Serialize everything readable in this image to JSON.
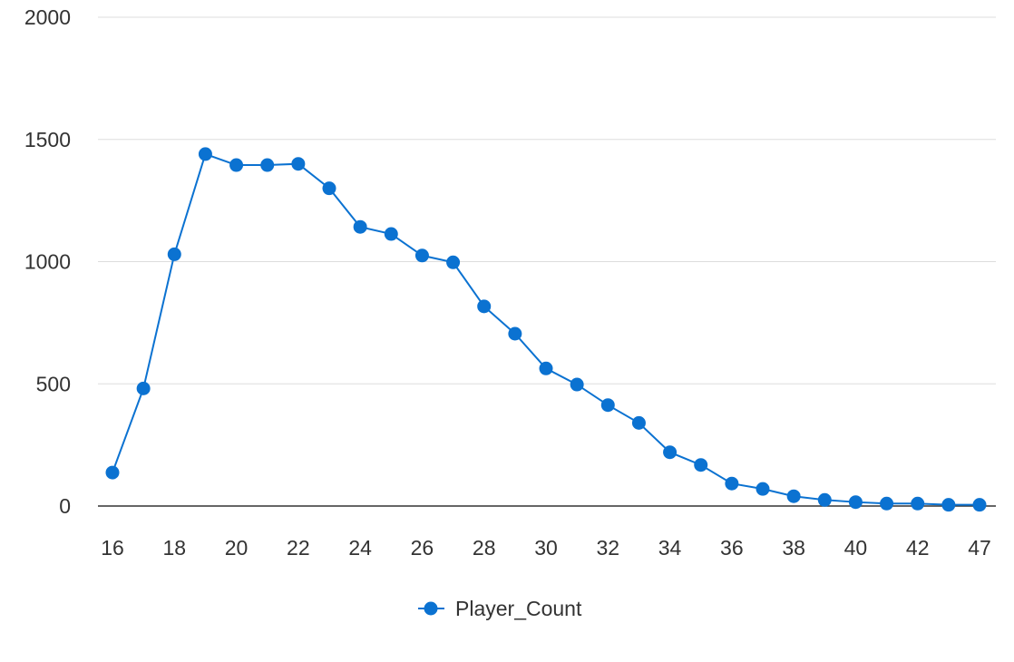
{
  "chart_data": {
    "type": "line",
    "title": "",
    "xlabel": "",
    "ylabel": "",
    "ylim": [
      0,
      2000
    ],
    "xlim": [
      16,
      47
    ],
    "y_ticks": [
      0,
      500,
      1000,
      1500,
      2000
    ],
    "x_tick_labels": [
      "16",
      "18",
      "20",
      "22",
      "24",
      "26",
      "28",
      "30",
      "32",
      "34",
      "36",
      "38",
      "40",
      "42",
      "47"
    ],
    "grid": true,
    "legend_position": "bottom",
    "series": [
      {
        "name": "Player_Count",
        "color": "#0b72d1",
        "marker": "circle",
        "x": [
          16,
          17,
          18,
          19,
          20,
          21,
          22,
          23,
          24,
          25,
          26,
          27,
          28,
          29,
          30,
          31,
          32,
          33,
          34,
          35,
          36,
          37,
          38,
          39,
          40,
          41,
          42,
          43,
          44
        ],
        "values": [
          137,
          481,
          1030,
          1440,
          1395,
          1395,
          1400,
          1300,
          1142,
          1113,
          1025,
          997,
          817,
          705,
          563,
          497,
          413,
          340,
          220,
          168,
          92,
          70,
          40,
          25,
          16,
          10,
          10,
          5,
          5
        ]
      }
    ]
  }
}
